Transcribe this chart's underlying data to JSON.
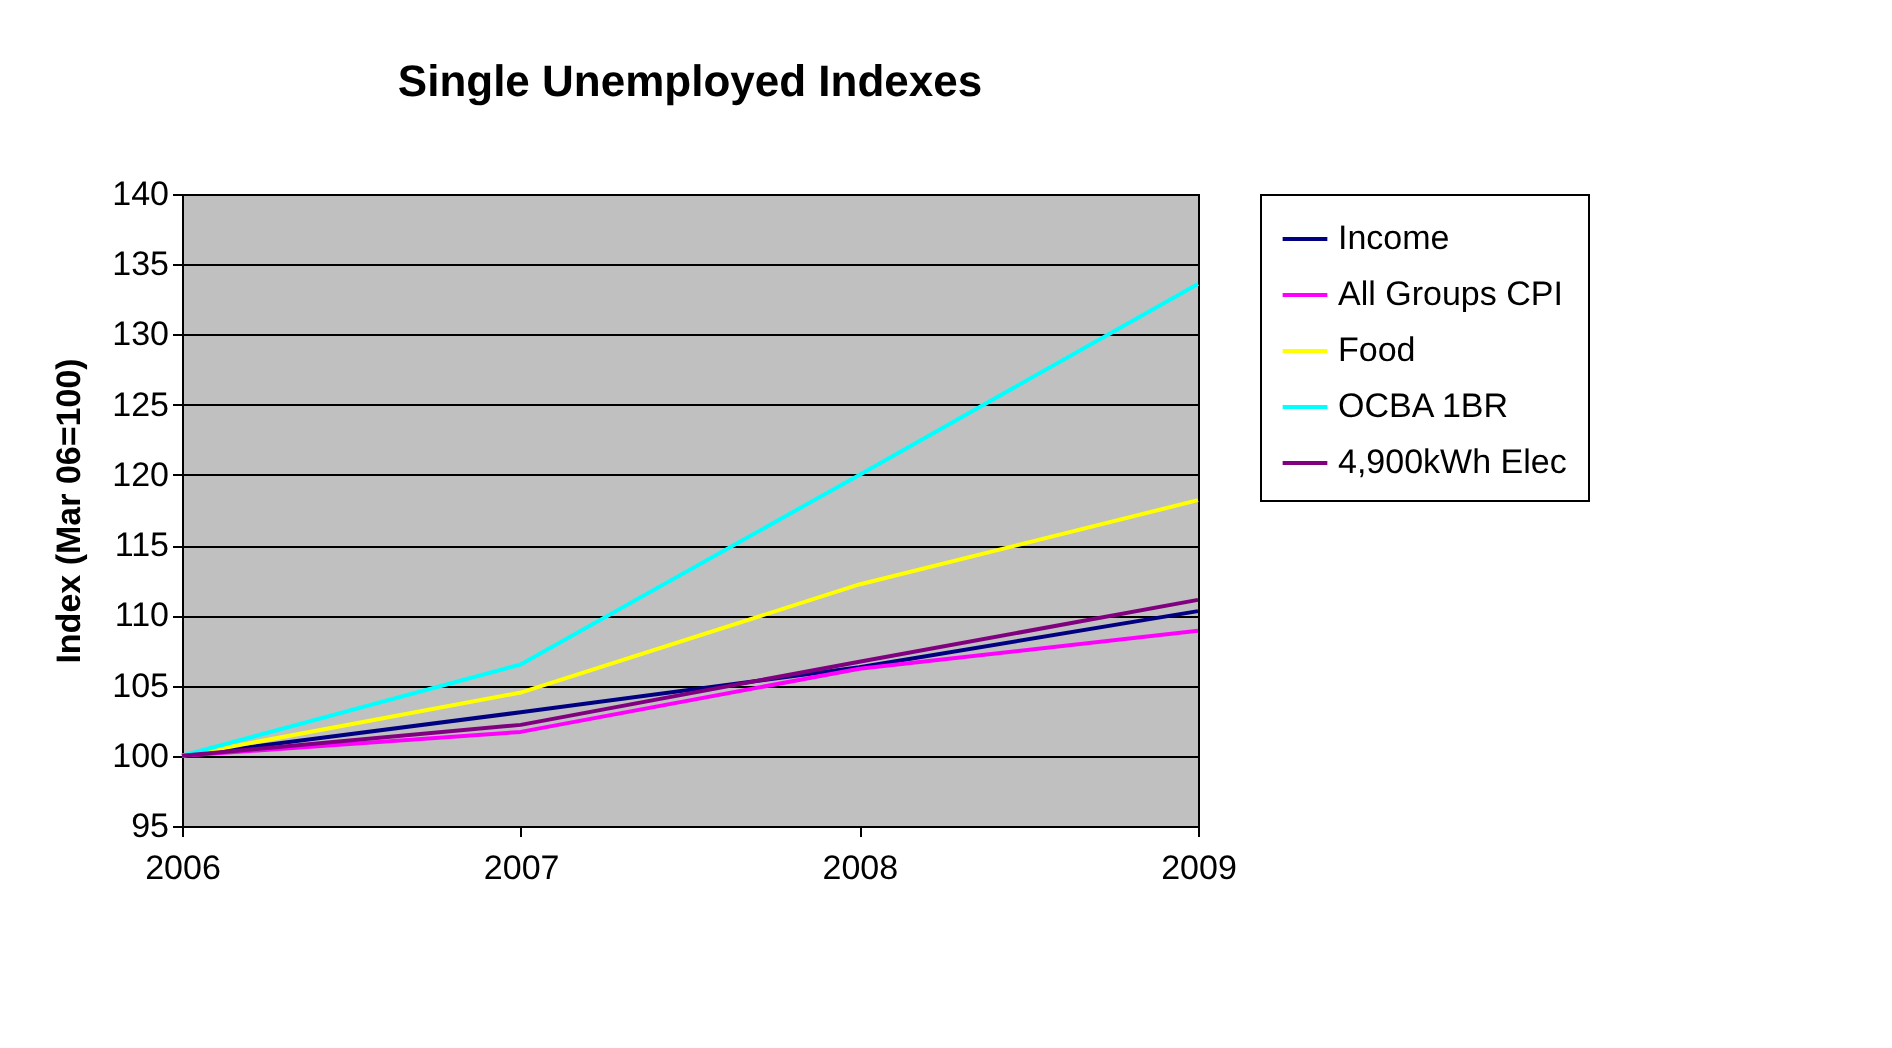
{
  "chart_data": {
    "type": "line",
    "title": "Single Unemployed Indexes",
    "ylabel": "Index (Mar 06=100)",
    "x": [
      2006,
      2007,
      2008,
      2009
    ],
    "series": [
      {
        "name": "Income",
        "color": "#000080",
        "values": [
          100,
          103.1,
          106.3,
          110.3
        ]
      },
      {
        "name": "All Groups CPI",
        "color": "#ff00ff",
        "values": [
          100,
          101.7,
          106.2,
          108.9
        ]
      },
      {
        "name": "Food",
        "color": "#ffff00",
        "values": [
          100,
          104.5,
          112.2,
          118.2
        ]
      },
      {
        "name": "OCBA 1BR",
        "color": "#00ffff",
        "values": [
          100,
          106.5,
          120,
          133.6
        ]
      },
      {
        "name": "4,900kWh Elec",
        "color": "#800080",
        "values": [
          100,
          102.2,
          106.7,
          111.1
        ]
      }
    ],
    "xlim": [
      2006,
      2009
    ],
    "xticks": [
      2006,
      2007,
      2008,
      2009
    ],
    "ylim": [
      95,
      140
    ],
    "yticks": [
      95,
      100,
      105,
      110,
      115,
      120,
      125,
      130,
      135,
      140
    ],
    "grid": "y",
    "legend": "right",
    "marker": "none",
    "line_style": "solid"
  }
}
